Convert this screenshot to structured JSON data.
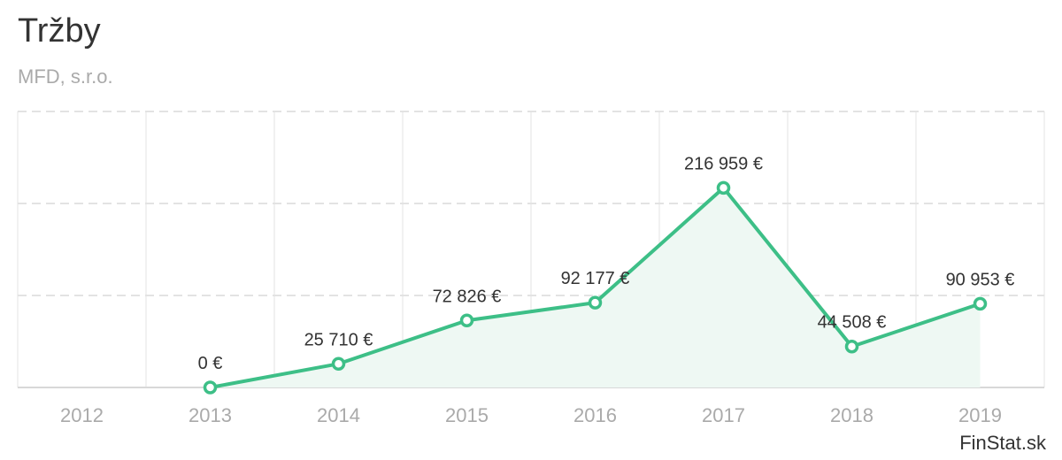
{
  "header": {
    "title": "Tržby",
    "subtitle": "MFD, s.r.o."
  },
  "footer": {
    "source": "FinStat.sk"
  },
  "colors": {
    "line": "#3dbf87",
    "area": "#eef8f3",
    "grid": "#e3e3e3",
    "axis_text": "#aaaaaa",
    "label_text": "#333333"
  },
  "chart_data": {
    "type": "area",
    "title": "Tržby",
    "subtitle": "MFD, s.r.o.",
    "categories": [
      "2012",
      "2013",
      "2014",
      "2015",
      "2016",
      "2017",
      "2018",
      "2019"
    ],
    "series": [
      {
        "values": [
          null,
          0,
          25710,
          72826,
          92177,
          216959,
          44508,
          90953
        ],
        "labels": [
          null,
          "0 €",
          "25 710 €",
          "72 826 €",
          "92 177 €",
          "216 959 €",
          "44 508 €",
          "90 953 €"
        ]
      }
    ],
    "ylim": [
      0,
      300000
    ],
    "grid": true,
    "legend": "none"
  }
}
